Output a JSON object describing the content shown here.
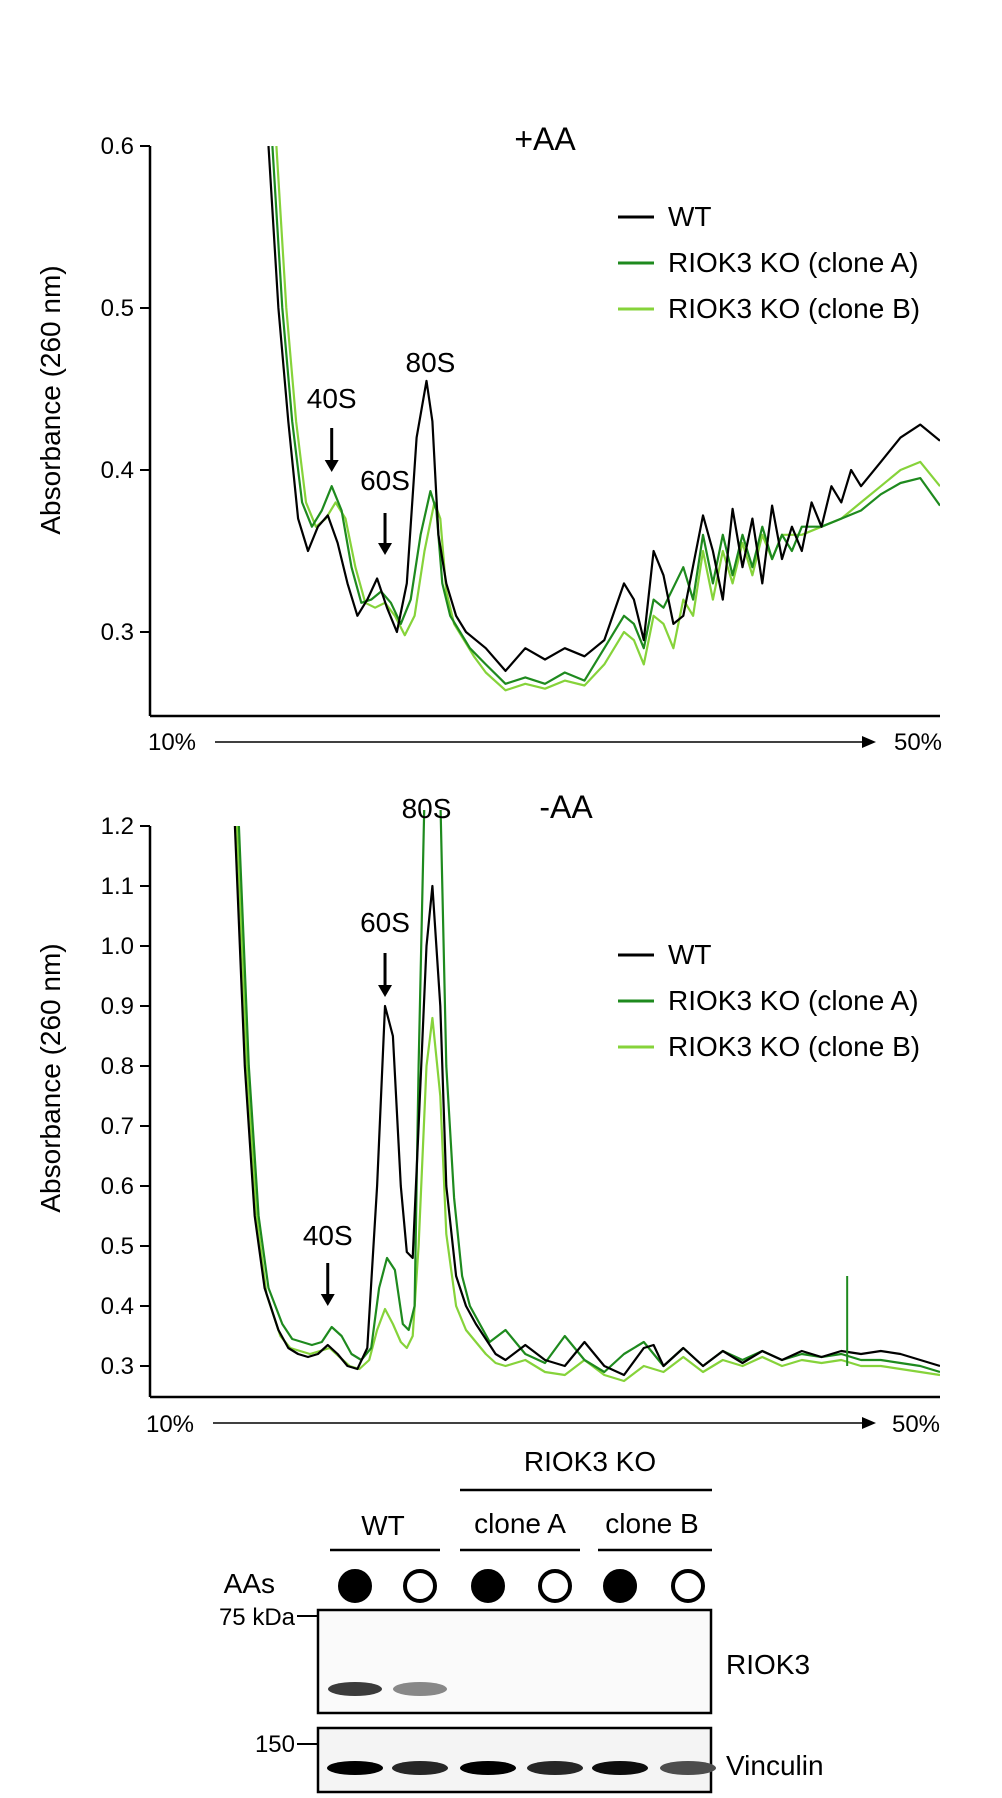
{
  "colors": {
    "wt": "#000000",
    "clone_a": "#1e8a1e",
    "clone_b": "#86d33a",
    "axis": "#000000"
  },
  "chart_data": [
    {
      "type": "line",
      "title": "+AA",
      "xlabel": "",
      "ylabel": "Absorbance (260 nm)",
      "xlim": [
        10,
        50
      ],
      "ylim": [
        0.25,
        0.6
      ],
      "ytick_labels": [
        "0.6",
        "0.5",
        "0.4",
        "0.3"
      ],
      "ytick_values": [
        0.6,
        0.5,
        0.4,
        0.3
      ],
      "gradient_start": "10%",
      "gradient_end": "50%",
      "legend": [
        "WT",
        "RIOK3 KO (clone A)",
        "RIOK3 KO (clone B)"
      ],
      "legend_position": "top-right",
      "annotations": [
        {
          "label": "40S",
          "x": 19.2,
          "arrow": true
        },
        {
          "label": "60S",
          "x": 21.9,
          "arrow": true
        },
        {
          "label": "80S",
          "x": 24.2,
          "arrow": false
        }
      ],
      "series": [
        {
          "name": "WT",
          "color_key": "wt",
          "x": [
            16.0,
            16.5,
            17.0,
            17.5,
            18.0,
            18.5,
            19.0,
            19.5,
            20.0,
            20.5,
            21.0,
            21.5,
            22.0,
            22.5,
            23.0,
            23.5,
            24.0,
            24.3,
            24.6,
            25.0,
            25.5,
            26.0,
            27.0,
            28.0,
            29.0,
            30.0,
            31.0,
            32.0,
            33.0,
            34.0,
            34.5,
            35.0,
            35.5,
            36.0,
            36.5,
            37.0,
            38.0,
            38.5,
            39.0,
            39.5,
            40.0,
            40.5,
            41.0,
            41.5,
            42.0,
            42.5,
            43.0,
            43.5,
            44.0,
            44.5,
            45.0,
            45.5,
            46.0,
            47.0,
            48.0,
            49.0,
            50.0
          ],
          "y": [
            0.6,
            0.5,
            0.43,
            0.37,
            0.35,
            0.365,
            0.372,
            0.355,
            0.33,
            0.31,
            0.32,
            0.333,
            0.315,
            0.3,
            0.33,
            0.42,
            0.455,
            0.43,
            0.36,
            0.33,
            0.31,
            0.3,
            0.29,
            0.276,
            0.29,
            0.283,
            0.29,
            0.285,
            0.295,
            0.33,
            0.32,
            0.295,
            0.35,
            0.335,
            0.305,
            0.31,
            0.372,
            0.35,
            0.32,
            0.376,
            0.34,
            0.37,
            0.33,
            0.378,
            0.345,
            0.365,
            0.35,
            0.38,
            0.365,
            0.39,
            0.38,
            0.4,
            0.39,
            0.405,
            0.42,
            0.428,
            0.418
          ]
        },
        {
          "name": "RIOK3 KO (clone A)",
          "color_key": "clone_a",
          "x": [
            16.2,
            16.7,
            17.2,
            17.7,
            18.2,
            18.7,
            19.2,
            19.7,
            20.2,
            20.7,
            21.2,
            21.7,
            22.2,
            22.7,
            23.2,
            23.7,
            24.2,
            24.5,
            24.8,
            25.2,
            25.7,
            26.2,
            27.0,
            28.0,
            29.0,
            30.0,
            31.0,
            32.0,
            33.0,
            34.0,
            34.5,
            35.0,
            35.5,
            36.0,
            37.0,
            37.5,
            38.0,
            38.5,
            39.0,
            39.5,
            40.0,
            40.5,
            41.0,
            41.5,
            42.0,
            42.5,
            43.0,
            44.0,
            45.0,
            46.0,
            47.0,
            48.0,
            49.0,
            50.0
          ],
          "y": [
            0.6,
            0.5,
            0.43,
            0.38,
            0.365,
            0.375,
            0.39,
            0.375,
            0.34,
            0.318,
            0.32,
            0.325,
            0.318,
            0.305,
            0.32,
            0.36,
            0.387,
            0.375,
            0.33,
            0.31,
            0.3,
            0.29,
            0.28,
            0.268,
            0.272,
            0.268,
            0.275,
            0.27,
            0.29,
            0.31,
            0.305,
            0.29,
            0.32,
            0.315,
            0.34,
            0.32,
            0.36,
            0.33,
            0.36,
            0.335,
            0.36,
            0.34,
            0.365,
            0.345,
            0.36,
            0.35,
            0.365,
            0.365,
            0.37,
            0.375,
            0.385,
            0.392,
            0.395,
            0.378
          ]
        },
        {
          "name": "RIOK3 KO (clone B)",
          "color_key": "clone_b",
          "x": [
            16.4,
            16.9,
            17.4,
            17.9,
            18.4,
            18.9,
            19.4,
            19.9,
            20.4,
            20.9,
            21.4,
            21.9,
            22.4,
            22.9,
            23.4,
            23.9,
            24.4,
            24.7,
            25.0,
            25.4,
            25.9,
            26.4,
            27.0,
            28.0,
            29.0,
            30.0,
            31.0,
            32.0,
            33.0,
            34.0,
            34.5,
            35.0,
            35.5,
            36.0,
            36.5,
            37.0,
            37.5,
            38.0,
            38.5,
            39.0,
            39.5,
            40.0,
            40.5,
            41.0,
            41.5,
            42.0,
            43.0,
            44.0,
            45.0,
            46.0,
            47.0,
            48.0,
            49.0,
            50.0
          ],
          "y": [
            0.6,
            0.5,
            0.43,
            0.38,
            0.365,
            0.37,
            0.38,
            0.37,
            0.34,
            0.318,
            0.315,
            0.318,
            0.31,
            0.298,
            0.31,
            0.35,
            0.38,
            0.37,
            0.325,
            0.305,
            0.295,
            0.285,
            0.275,
            0.264,
            0.268,
            0.265,
            0.27,
            0.267,
            0.28,
            0.3,
            0.295,
            0.28,
            0.31,
            0.305,
            0.29,
            0.32,
            0.31,
            0.35,
            0.32,
            0.35,
            0.33,
            0.355,
            0.335,
            0.36,
            0.345,
            0.36,
            0.36,
            0.365,
            0.37,
            0.38,
            0.39,
            0.4,
            0.405,
            0.39
          ]
        }
      ]
    },
    {
      "type": "line",
      "title": "-AA",
      "xlabel": "",
      "ylabel": "Absorbance (260 nm)",
      "xlim": [
        10,
        50
      ],
      "ylim": [
        0.25,
        1.2
      ],
      "ytick_labels": [
        "1.2",
        "1.1",
        "1.0",
        "0.9",
        "0.8",
        "0.7",
        "0.6",
        "0.5",
        "0.4",
        "0.3"
      ],
      "ytick_values": [
        1.2,
        1.1,
        1.0,
        0.9,
        0.8,
        0.7,
        0.6,
        0.5,
        0.4,
        0.3
      ],
      "gradient_start": "10%",
      "gradient_end": "50%",
      "legend": [
        "WT",
        "RIOK3 KO (clone A)",
        "RIOK3 KO (clone B)"
      ],
      "legend_position": "right",
      "annotations": [
        {
          "label": "40S",
          "x": 19.0,
          "arrow": true
        },
        {
          "label": "60S",
          "x": 21.9,
          "arrow": true
        },
        {
          "label": "80S",
          "x": 24.0,
          "arrow": false
        }
      ],
      "series": [
        {
          "name": "WT",
          "color_key": "wt",
          "x": [
            14.3,
            14.8,
            15.3,
            15.8,
            16.5,
            17.0,
            17.5,
            18.0,
            18.5,
            19.0,
            19.5,
            20.0,
            20.5,
            21.0,
            21.5,
            21.9,
            22.3,
            22.7,
            23.0,
            23.3,
            23.6,
            24.0,
            24.3,
            24.7,
            25.0,
            25.5,
            26.0,
            26.5,
            27.0,
            27.5,
            28.0,
            29.0,
            30.0,
            31.0,
            32.0,
            33.0,
            34.0,
            35.0,
            35.5,
            36.0,
            37.0,
            38.0,
            39.0,
            40.0,
            41.0,
            42.0,
            43.0,
            44.0,
            45.0,
            46.0,
            47.0,
            48.0,
            49.0,
            50.0
          ],
          "y": [
            1.2,
            0.8,
            0.55,
            0.43,
            0.36,
            0.33,
            0.32,
            0.315,
            0.32,
            0.335,
            0.32,
            0.3,
            0.295,
            0.33,
            0.6,
            0.9,
            0.85,
            0.6,
            0.49,
            0.48,
            0.7,
            1.0,
            1.1,
            0.9,
            0.6,
            0.45,
            0.4,
            0.37,
            0.345,
            0.32,
            0.31,
            0.335,
            0.31,
            0.3,
            0.34,
            0.3,
            0.285,
            0.33,
            0.335,
            0.3,
            0.33,
            0.3,
            0.325,
            0.305,
            0.325,
            0.31,
            0.325,
            0.315,
            0.325,
            0.32,
            0.325,
            0.32,
            0.31,
            0.3
          ]
        },
        {
          "name": "RIOK3 KO (clone A)",
          "color_key": "clone_a",
          "x": [
            14.5,
            15.0,
            15.5,
            16.0,
            16.7,
            17.2,
            17.7,
            18.2,
            18.7,
            19.2,
            19.7,
            20.2,
            20.7,
            21.2,
            21.6,
            22.0,
            22.4,
            22.8,
            23.1,
            23.4,
            23.6,
            23.9,
            24.1,
            24.4,
            24.7,
            25.0,
            25.4,
            25.8,
            26.2,
            26.7,
            27.2,
            28.0,
            29.0,
            30.0,
            31.0,
            32.0,
            33.0,
            34.0,
            35.0,
            36.0,
            37.0,
            38.0,
            39.0,
            40.0,
            41.0,
            42.0,
            43.0,
            44.0,
            45.0,
            46.0,
            47.0,
            48.0,
            49.0,
            50.0
          ],
          "y": [
            1.2,
            0.8,
            0.55,
            0.43,
            0.37,
            0.345,
            0.34,
            0.335,
            0.34,
            0.365,
            0.35,
            0.32,
            0.31,
            0.33,
            0.43,
            0.48,
            0.46,
            0.37,
            0.36,
            0.4,
            0.8,
            1.25,
            1.25,
            1.25,
            1.25,
            0.8,
            0.58,
            0.45,
            0.4,
            0.37,
            0.34,
            0.36,
            0.32,
            0.305,
            0.35,
            0.31,
            0.29,
            0.32,
            0.34,
            0.3,
            0.33,
            0.3,
            0.325,
            0.31,
            0.325,
            0.31,
            0.32,
            0.315,
            0.32,
            0.31,
            0.31,
            0.305,
            0.3,
            0.29
          ]
        },
        {
          "name": "RIOK3 KO (clone B)",
          "color_key": "clone_b",
          "x": [
            14.4,
            14.9,
            15.4,
            15.9,
            16.6,
            17.1,
            17.6,
            18.1,
            18.6,
            19.1,
            19.6,
            20.1,
            20.6,
            21.1,
            21.5,
            21.9,
            22.3,
            22.7,
            23.0,
            23.3,
            23.6,
            24.0,
            24.3,
            24.7,
            25.0,
            25.5,
            26.0,
            26.5,
            27.0,
            27.5,
            28.0,
            29.0,
            30.0,
            31.0,
            32.0,
            33.0,
            34.0,
            35.0,
            36.0,
            37.0,
            38.0,
            39.0,
            40.0,
            41.0,
            42.0,
            43.0,
            44.0,
            45.0,
            46.0,
            47.0,
            48.0,
            49.0,
            50.0
          ],
          "y": [
            1.2,
            0.8,
            0.55,
            0.42,
            0.35,
            0.33,
            0.325,
            0.32,
            0.325,
            0.33,
            0.315,
            0.3,
            0.295,
            0.31,
            0.36,
            0.395,
            0.37,
            0.34,
            0.33,
            0.35,
            0.5,
            0.8,
            0.88,
            0.75,
            0.52,
            0.4,
            0.36,
            0.34,
            0.32,
            0.305,
            0.3,
            0.31,
            0.29,
            0.285,
            0.31,
            0.285,
            0.275,
            0.3,
            0.29,
            0.315,
            0.29,
            0.31,
            0.3,
            0.315,
            0.3,
            0.31,
            0.305,
            0.31,
            0.3,
            0.3,
            0.295,
            0.29,
            0.285
          ]
        }
      ],
      "spike": {
        "series": "RIOK3 KO (clone A)",
        "x": 45.3,
        "y_top": 0.45,
        "y_bottom": 0.3
      }
    }
  ],
  "western_blot": {
    "group_header": "RIOK3 KO",
    "groups": [
      "WT",
      "clone A",
      "clone B"
    ],
    "aas_label": "AAs",
    "aas_states": [
      true,
      false,
      true,
      false,
      true,
      false
    ],
    "marker_75": "75 kDa",
    "marker_150": "150",
    "band_labels": [
      "RIOK3",
      "Vinculin"
    ],
    "riok3_band_intensity": [
      0.9,
      0.55,
      0,
      0,
      0,
      0
    ],
    "vinculin_band_intensity": [
      1.0,
      0.85,
      1.0,
      0.85,
      0.95,
      0.7
    ]
  }
}
